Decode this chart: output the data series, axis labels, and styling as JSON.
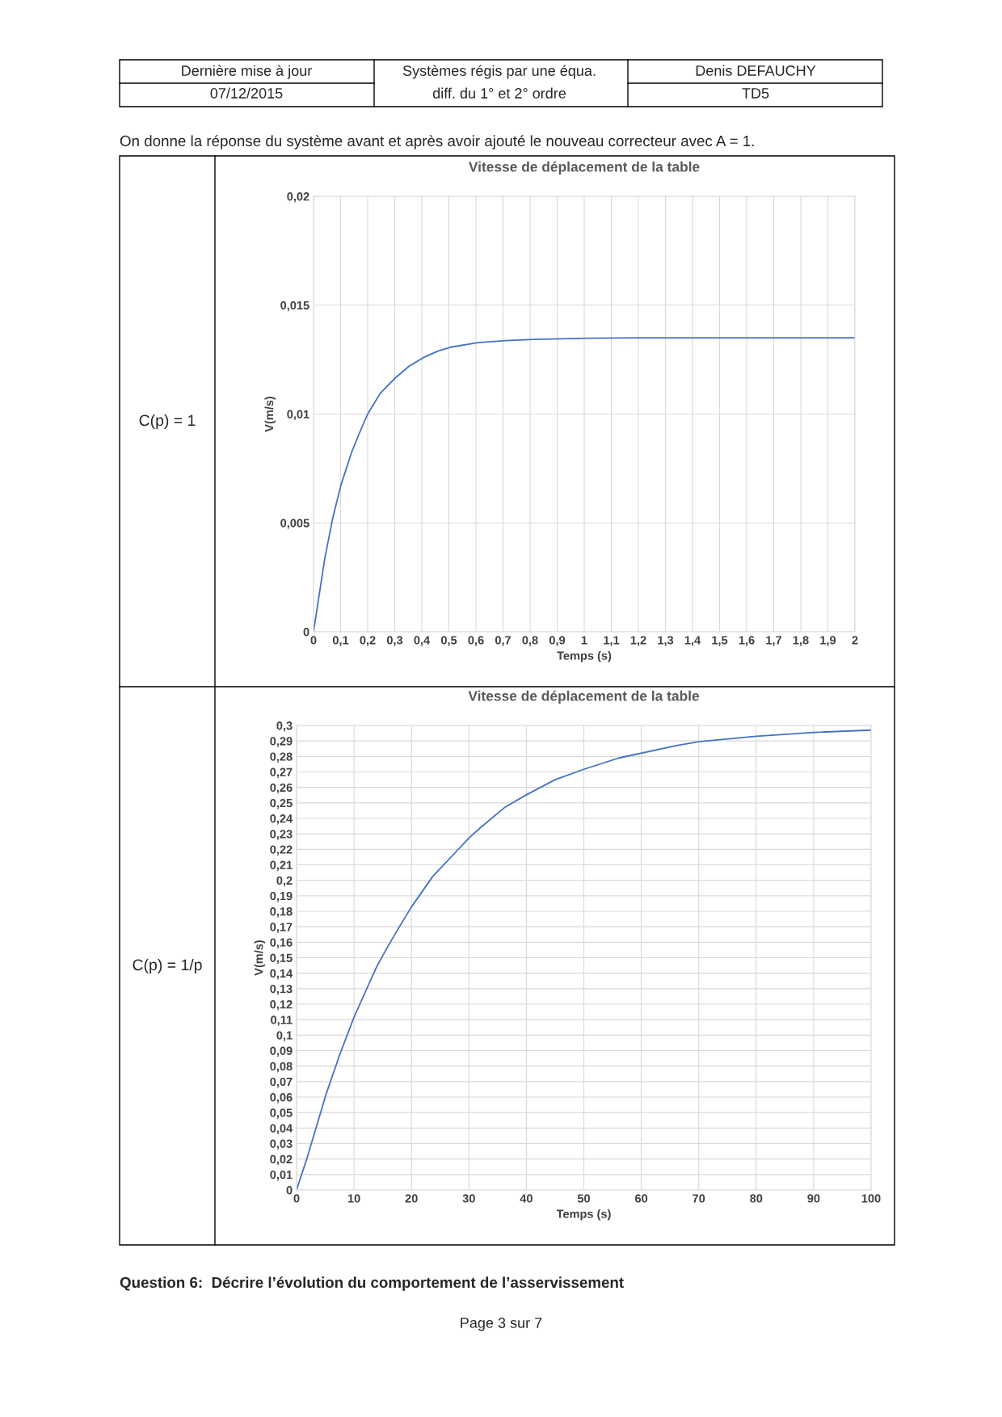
{
  "chart_data": [
    {
      "type": "line",
      "title": "Vitesse de déplacement de la table",
      "xlabel": "Temps (s)",
      "ylabel": "V(m/s)",
      "annotations": [
        "Dernière mise à jour",
        "07/12/2015",
        "Systèmes régis par une équa.",
        "diff. du 1° et 2° ordre",
        "Denis DEFAUCHY",
        "TD5",
        "On donne la réponse du système avant et après avoir ajouté le nouveau correcteur avec A = 1.",
        "C(p) = 1"
      ],
      "series": [
        {
          "color": "#4472c4",
          "x": [
            0,
            0.0416,
            0.071,
            0.101,
            0.14,
            0.169,
            0.2,
            0.247,
            0.303,
            0.354,
            0.407,
            0.461,
            0.506,
            0.607,
            0.71,
            0.813,
            1.017,
            1.22,
            1.5,
            2.0
          ],
          "values": [
            0,
            0.00337,
            0.00522,
            0.00672,
            0.00822,
            0.00911,
            0.01,
            0.01096,
            0.01167,
            0.01221,
            0.0126,
            0.0129,
            0.01307,
            0.01328,
            0.01337,
            0.01343,
            0.01348,
            0.0135,
            0.0135,
            0.0135
          ]
        }
      ],
      "xlim": [
        0,
        2
      ],
      "ylim": [
        0,
        0.02
      ],
      "xticks": [
        0,
        {
          "value": 0.1,
          "label": "0,1"
        },
        {
          "value": 0.2,
          "label": "0,2"
        },
        {
          "value": 0.3,
          "label": "0,3"
        },
        {
          "value": 0.4,
          "label": "0,4"
        },
        {
          "value": 0.5,
          "label": "0,5"
        },
        {
          "value": 0.6,
          "label": "0,6"
        },
        {
          "value": 0.7,
          "label": "0,7"
        },
        {
          "value": 0.8,
          "label": "0,8"
        },
        {
          "value": 0.9,
          "label": "0,9"
        },
        1,
        {
          "value": 1.1,
          "label": "1,1"
        },
        {
          "value": 1.2,
          "label": "1,2"
        },
        {
          "value": 1.3,
          "label": "1,3"
        },
        {
          "value": 1.4,
          "label": "1,4"
        },
        {
          "value": 1.5,
          "label": "1,5"
        },
        {
          "value": 1.6,
          "label": "1,6"
        },
        {
          "value": 1.7,
          "label": "1,7"
        },
        {
          "value": 1.8,
          "label": "1,8"
        },
        {
          "value": 1.9,
          "label": "1,9"
        },
        2
      ],
      "yticks": [
        0,
        {
          "value": 0.005,
          "label": "0,005"
        },
        {
          "value": 0.01,
          "label": "0,01"
        },
        {
          "value": 0.015,
          "label": "0,015"
        },
        {
          "value": 0.02,
          "label": "0,02"
        }
      ],
      "grid": true,
      "marker": "none",
      "line_style": "solid",
      "legend": false
    },
    {
      "type": "line",
      "title": "Vitesse de déplacement de la table",
      "xlabel": "Temps (s)",
      "ylabel": "V(m/s)",
      "annotations": [
        "C(p) = 1/p",
        "Question 6:  Décrire l’évolution du comportement de l’asservissement",
        "Page 3 sur 7"
      ],
      "series": [
        {
          "color": "#4472c4",
          "x": [
            0,
            1.83,
            3.49,
            5.15,
            7.65,
            10,
            12.1,
            14,
            16,
            17.9,
            20,
            23.7,
            27.9,
            30,
            32,
            36.2,
            40,
            45,
            50,
            56.1,
            66.3,
            70,
            80,
            90,
            100
          ],
          "values": [
            0,
            0.0207,
            0.0413,
            0.062,
            0.0888,
            0.1116,
            0.129,
            0.1446,
            0.158,
            0.17,
            0.1828,
            0.2025,
            0.219,
            0.2273,
            0.234,
            0.247,
            0.2552,
            0.265,
            0.2717,
            0.279,
            0.2872,
            0.2895,
            0.293,
            0.2955,
            0.297
          ]
        }
      ],
      "xlim": [
        0,
        100
      ],
      "ylim": [
        0,
        0.3
      ],
      "xticks": [
        0,
        10,
        20,
        30,
        40,
        50,
        60,
        70,
        80,
        90,
        100
      ],
      "yticks": [
        0,
        {
          "value": 0.01,
          "label": "0,01"
        },
        {
          "value": 0.02,
          "label": "0,02"
        },
        {
          "value": 0.03,
          "label": "0,03"
        },
        {
          "value": 0.04,
          "label": "0,04"
        },
        {
          "value": 0.05,
          "label": "0,05"
        },
        {
          "value": 0.06,
          "label": "0,06"
        },
        {
          "value": 0.07,
          "label": "0,07"
        },
        {
          "value": 0.08,
          "label": "0,08"
        },
        {
          "value": 0.09,
          "label": "0,09"
        },
        {
          "value": 0.1,
          "label": "0,1"
        },
        {
          "value": 0.11,
          "label": "0,11"
        },
        {
          "value": 0.12,
          "label": "0,12"
        },
        {
          "value": 0.13,
          "label": "0,13"
        },
        {
          "value": 0.14,
          "label": "0,14"
        },
        {
          "value": 0.15,
          "label": "0,15"
        },
        {
          "value": 0.16,
          "label": "0,16"
        },
        {
          "value": 0.17,
          "label": "0,17"
        },
        {
          "value": 0.18,
          "label": "0,18"
        },
        {
          "value": 0.19,
          "label": "0,19"
        },
        {
          "value": 0.2,
          "label": "0,2"
        },
        {
          "value": 0.21,
          "label": "0,21"
        },
        {
          "value": 0.22,
          "label": "0,22"
        },
        {
          "value": 0.23,
          "label": "0,23"
        },
        {
          "value": 0.24,
          "label": "0,24"
        },
        {
          "value": 0.25,
          "label": "0,25"
        },
        {
          "value": 0.26,
          "label": "0,26"
        },
        {
          "value": 0.27,
          "label": "0,27"
        },
        {
          "value": 0.28,
          "label": "0,28"
        },
        {
          "value": 0.29,
          "label": "0,29"
        },
        {
          "value": 0.3,
          "label": "0,3"
        }
      ],
      "grid": true,
      "marker": "none",
      "line_style": "solid",
      "legend": false
    }
  ]
}
